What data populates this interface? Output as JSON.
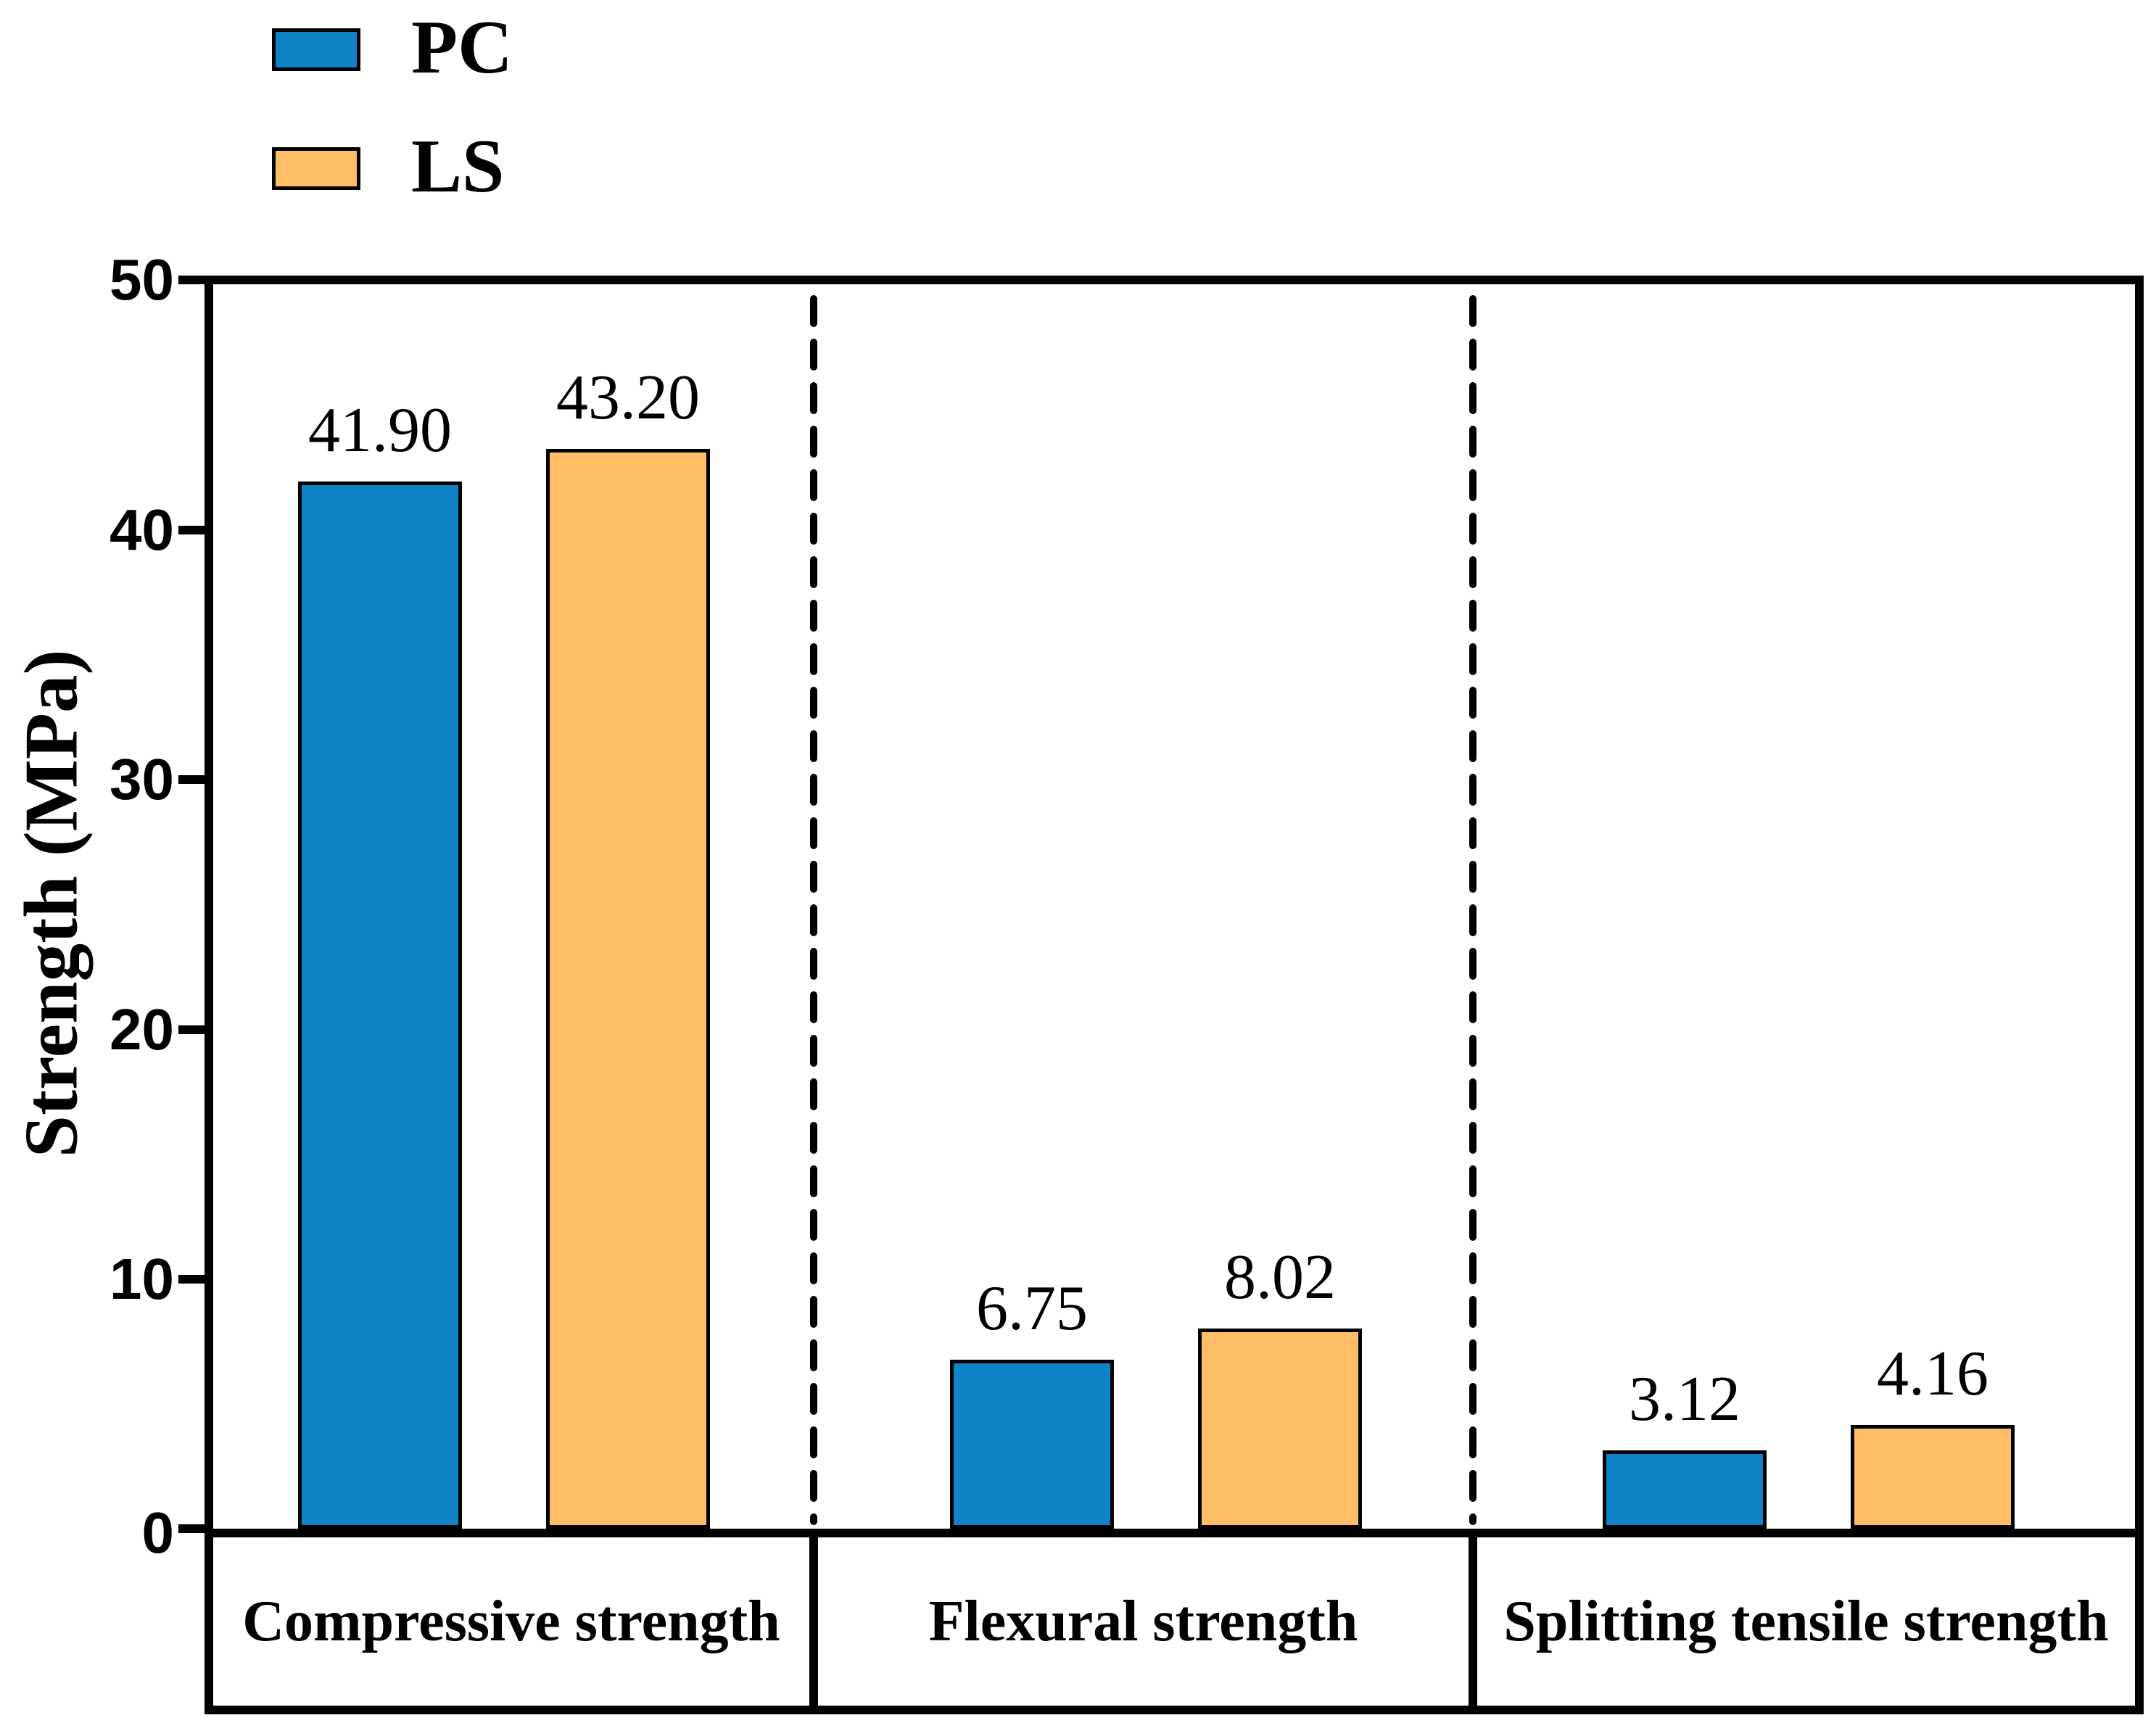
{
  "chart_data": {
    "type": "bar",
    "title": "",
    "ylabel": "Strength (MPa)",
    "xlabel": "",
    "ylim": [
      0,
      50
    ],
    "yticks": [
      "50",
      "40",
      "30",
      "20",
      "10",
      "0"
    ],
    "categories": [
      "Compressive strength",
      "Flexural strength",
      "Splitting tensile strength"
    ],
    "series": [
      {
        "name": "PC",
        "color": "#0E84C6",
        "values": [
          41.9,
          6.75,
          3.12
        ],
        "labels": [
          "41.90",
          "6.75",
          "3.12"
        ]
      },
      {
        "name": "LS",
        "color": "#FFBD66",
        "values": [
          43.2,
          8.02,
          4.16
        ],
        "labels": [
          "43.20",
          "8.02",
          "4.16"
        ]
      }
    ],
    "legend_position": "top-left",
    "grid": false,
    "bar_outline_color": "#000000",
    "separator_style": "dashed vertical lines between category sections"
  }
}
